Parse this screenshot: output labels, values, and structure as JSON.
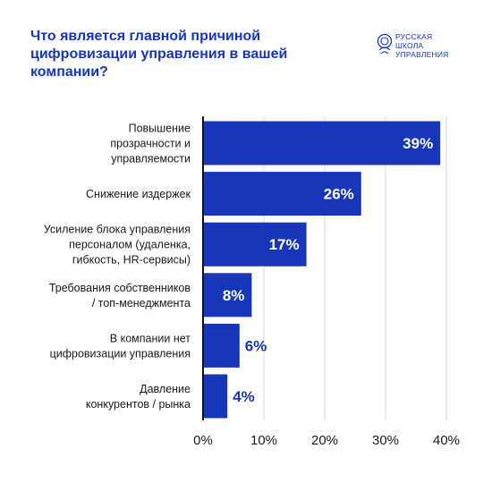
{
  "chart_data": {
    "type": "bar",
    "orientation": "horizontal",
    "title": "Что является главной причиной цифровизации управления в вашей компании?",
    "categories": [
      "Повышение прозрачности и управляемости",
      "Снижение издержек",
      "Усиление блока управления персоналом (удаленка, гибкость, HR-сервисы)",
      "Требования собственников / топ-менеджмента",
      "В компании нет цифровизации управления",
      "Давление конкурентов / рынка"
    ],
    "category_lines": [
      [
        "Повышение",
        "прозрачности и",
        "управляемости"
      ],
      [
        "Снижение издержек"
      ],
      [
        "Усиление блока управления",
        "персоналом (удаленка,",
        "гибкость, HR-сервисы)"
      ],
      [
        "Требования собственников",
        "/ топ-менеджмента"
      ],
      [
        "В компании нет",
        "цифровизации управления"
      ],
      [
        "Давление",
        "конкурентов / рынка"
      ]
    ],
    "values": [
      39,
      26,
      17,
      8,
      6,
      4
    ],
    "value_labels": [
      "39%",
      "26%",
      "17%",
      "8%",
      "6%",
      "4%"
    ],
    "xlim": [
      0,
      40
    ],
    "ticks": [
      0,
      10,
      20,
      30,
      40
    ],
    "tick_labels": [
      "0%",
      "10%",
      "20%",
      "30%",
      "40%"
    ],
    "grid": true,
    "legend": "none",
    "colors": {
      "bar": "#1736b8",
      "title": "#1736b8",
      "grid": "#d9d9d9",
      "axis": "#111111",
      "label_inside": "#ffffff",
      "label_outside": "#1736b8"
    }
  },
  "logo": {
    "lines": [
      "РУССКАЯ",
      "ШКОЛА",
      "УПРАВЛЕНИЯ"
    ]
  }
}
